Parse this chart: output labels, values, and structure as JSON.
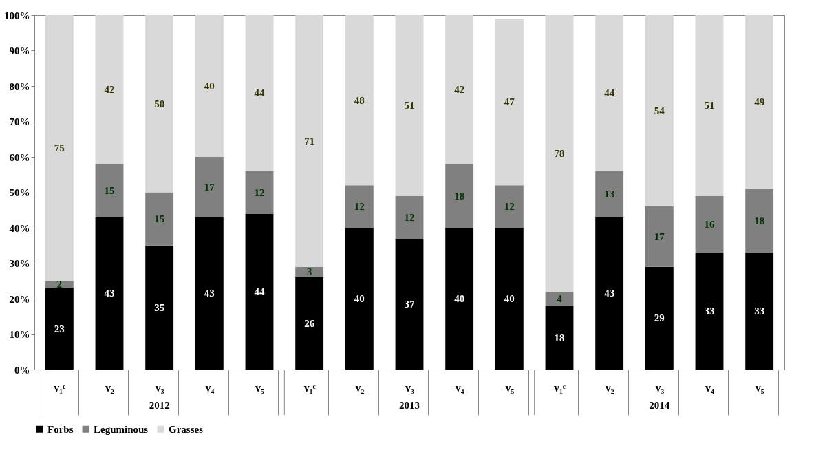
{
  "chart_data": {
    "type": "bar",
    "stacked": true,
    "data_labels": true,
    "legend": "bottom",
    "grid": false,
    "categories": [
      "v₁ᶜ",
      "v₂",
      "v₃",
      "v₄",
      "v₅",
      "v₁ᶜ",
      "v₂",
      "v₃",
      "v₄",
      "v₅",
      "v₁ᶜ",
      "v₂",
      "v₃",
      "v₄",
      "v₅"
    ],
    "series": [
      {
        "name": "Forbs",
        "color": "#000000",
        "values": [
          23,
          43,
          35,
          43,
          44,
          26,
          40,
          37,
          40,
          40,
          18,
          43,
          29,
          33,
          33
        ]
      },
      {
        "name": "Leguminous",
        "color": "#808080",
        "values": [
          2,
          15,
          15,
          17,
          12,
          3,
          12,
          12,
          18,
          12,
          4,
          13,
          17,
          16,
          18
        ]
      },
      {
        "name": "Grasses",
        "color": "#d9d9d9",
        "values": [
          75,
          42,
          50,
          40,
          44,
          71,
          48,
          51,
          42,
          47,
          78,
          44,
          54,
          51,
          49
        ]
      }
    ],
    "ylim": [
      0,
      100
    ],
    "yticks": [
      {
        "value": 0,
        "label": "0%"
      },
      {
        "value": 10,
        "label": "10%"
      },
      {
        "value": 20,
        "label": "20%"
      },
      {
        "value": 30,
        "label": "30%"
      },
      {
        "value": 40,
        "label": "40%"
      },
      {
        "value": 50,
        "label": "50%"
      },
      {
        "value": 60,
        "label": "60%"
      },
      {
        "value": 70,
        "label": "70%"
      },
      {
        "value": 80,
        "label": "80%"
      },
      {
        "value": 90,
        "label": "90%"
      },
      {
        "value": 100,
        "label": "100%"
      }
    ],
    "annotations": [
      "2012",
      "2013",
      "2014"
    ]
  }
}
